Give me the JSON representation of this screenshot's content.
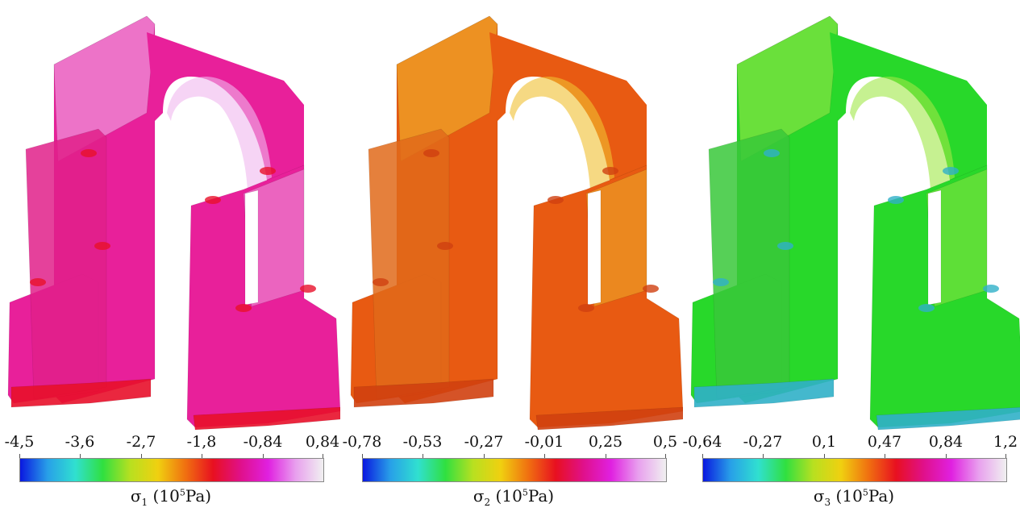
{
  "panels": [
    {
      "symbol": "σ",
      "subscript": "1",
      "unit_prefix": "(10",
      "unit_exp": "5",
      "unit_suffix": "Pa)",
      "ticks": [
        "-4,5",
        "-3,6",
        "-2,7",
        "-1,8",
        "-0,84",
        "0,84"
      ],
      "body_color": "#e8209a",
      "accent_color": "#e0208a",
      "highlight_color": "#f0b8ee",
      "hot_color": "#e8102a"
    },
    {
      "symbol": "σ",
      "subscript": "2",
      "unit_prefix": "(10",
      "unit_exp": "5",
      "unit_suffix": "Pa)",
      "ticks": [
        "-0,78",
        "-0,53",
        "-0,27",
        "-0,01",
        "0,25",
        "0,5"
      ],
      "body_color": "#e85a12",
      "accent_color": "#e06a1a",
      "highlight_color": "#f0c030",
      "hot_color": "#d04010"
    },
    {
      "symbol": "σ",
      "subscript": "3",
      "unit_prefix": "(10",
      "unit_exp": "5",
      "unit_suffix": "Pa)",
      "ticks": [
        "-0,64",
        "-0,27",
        "0,1",
        "0,47",
        "0,84",
        "1,2"
      ],
      "body_color": "#28d82a",
      "accent_color": "#38c83a",
      "highlight_color": "#a0e848",
      "hot_color": "#30b0c8"
    }
  ],
  "colormap": [
    "#0a18e0",
    "#28a0e8",
    "#30e0d0",
    "#30e040",
    "#b8e020",
    "#f0d010",
    "#f07010",
    "#e81020",
    "#e0108a",
    "#e020e0",
    "#e8a0ee",
    "#f0f0f0"
  ]
}
